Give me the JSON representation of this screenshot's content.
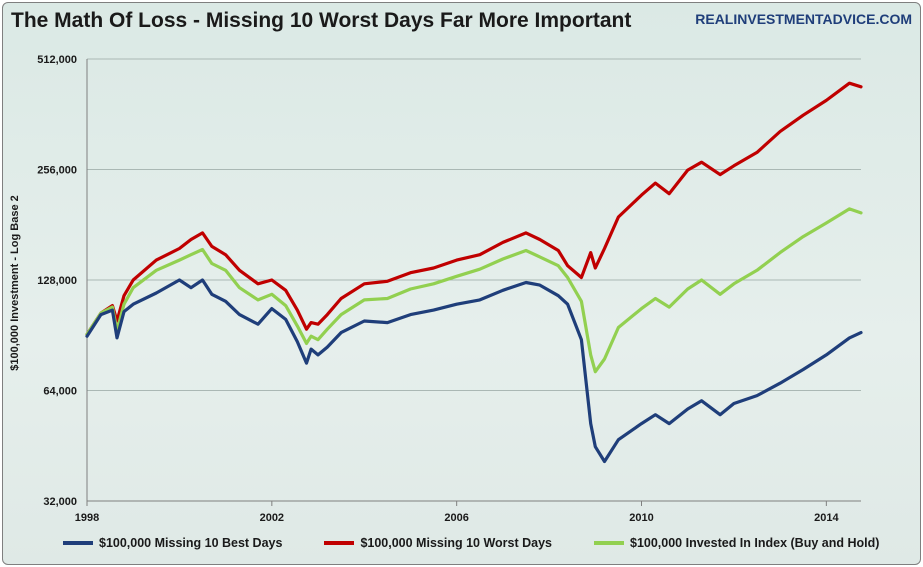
{
  "header": {
    "title": "The Math Of Loss - Missing 10 Worst Days Far More Important",
    "source": "REALINVESTMENTADVICE.COM"
  },
  "chart_data": {
    "type": "line",
    "title": "The Math Of Loss - Missing 10 Worst Days Far More Important",
    "xlabel": "",
    "ylabel": "$100,000 Investment - Log Base 2",
    "y_scale": "log2",
    "ylim": [
      32000,
      512000
    ],
    "xlim": [
      1998.0,
      2014.75
    ],
    "y_ticks": [
      "32,000",
      "64,000",
      "128,000",
      "256,000",
      "512,000"
    ],
    "y_tick_values": [
      32000,
      64000,
      128000,
      256000,
      512000
    ],
    "x_ticks": [
      "1998",
      "2002",
      "2006",
      "2010",
      "2014"
    ],
    "x_tick_values": [
      1998,
      2002,
      2006,
      2010,
      2014
    ],
    "grid": "horizontal",
    "legend_position": "bottom",
    "series": [
      {
        "name": "$100,000 Missing 10 Best Days",
        "color": "#1f3e7a",
        "x": [
          1998.0,
          1998.3,
          1998.55,
          1998.65,
          1998.8,
          1999.0,
          1999.5,
          2000.0,
          2000.25,
          2000.5,
          2000.7,
          2001.0,
          2001.3,
          2001.7,
          2002.0,
          2002.3,
          2002.55,
          2002.75,
          2002.85,
          2003.0,
          2003.2,
          2003.5,
          2004.0,
          2004.5,
          2005.0,
          2005.5,
          2006.0,
          2006.5,
          2007.0,
          2007.5,
          2007.8,
          2008.2,
          2008.4,
          2008.7,
          2008.9,
          2009.0,
          2009.2,
          2009.5,
          2010.0,
          2010.3,
          2010.6,
          2011.0,
          2011.3,
          2011.7,
          2012.0,
          2012.5,
          2013.0,
          2013.5,
          2014.0,
          2014.5,
          2014.75
        ],
        "values": [
          90000,
          103000,
          106000,
          89000,
          105000,
          110000,
          118000,
          128000,
          122000,
          128000,
          117000,
          112000,
          103000,
          97000,
          107000,
          100000,
          87000,
          76000,
          83000,
          80000,
          84000,
          92000,
          99000,
          98000,
          103000,
          106000,
          110000,
          113000,
          120000,
          126000,
          124000,
          116000,
          110000,
          88000,
          52000,
          45000,
          41000,
          47000,
          52000,
          55000,
          52000,
          57000,
          60000,
          55000,
          59000,
          62000,
          67000,
          73000,
          80000,
          89000,
          92000
        ]
      },
      {
        "name": "$100,000 Missing 10 Worst Days",
        "color": "#c00000",
        "x": [
          1998.0,
          1998.3,
          1998.55,
          1998.65,
          1998.8,
          1999.0,
          1999.5,
          2000.0,
          2000.25,
          2000.5,
          2000.7,
          2001.0,
          2001.3,
          2001.7,
          2002.0,
          2002.3,
          2002.55,
          2002.75,
          2002.85,
          2003.0,
          2003.2,
          2003.5,
          2004.0,
          2004.5,
          2005.0,
          2005.5,
          2006.0,
          2006.5,
          2007.0,
          2007.5,
          2007.8,
          2008.2,
          2008.4,
          2008.7,
          2008.9,
          2009.0,
          2009.2,
          2009.5,
          2010.0,
          2010.3,
          2010.6,
          2011.0,
          2011.3,
          2011.7,
          2012.0,
          2012.5,
          2013.0,
          2013.5,
          2014.0,
          2014.5,
          2014.75
        ],
        "values": [
          91000,
          104000,
          109000,
          99000,
          116000,
          128000,
          145000,
          156000,
          165000,
          172000,
          158000,
          150000,
          136000,
          125000,
          128000,
          120000,
          106000,
          94000,
          98000,
          97000,
          103000,
          114000,
          125000,
          127000,
          134000,
          138000,
          145000,
          150000,
          162000,
          172000,
          165000,
          154000,
          140000,
          130000,
          152000,
          138000,
          156000,
          190000,
          218000,
          235000,
          220000,
          255000,
          268000,
          248000,
          262000,
          285000,
          325000,
          360000,
          395000,
          440000,
          430000
        ]
      },
      {
        "name": "$100,000 Invested In Index (Buy and Hold)",
        "color": "#92d050",
        "x": [
          1998.0,
          1998.3,
          1998.55,
          1998.65,
          1998.8,
          1999.0,
          1999.5,
          2000.0,
          2000.25,
          2000.5,
          2000.7,
          2001.0,
          2001.3,
          2001.7,
          2002.0,
          2002.3,
          2002.55,
          2002.75,
          2002.85,
          2003.0,
          2003.2,
          2003.5,
          2004.0,
          2004.5,
          2005.0,
          2005.5,
          2006.0,
          2006.5,
          2007.0,
          2007.5,
          2007.8,
          2008.2,
          2008.4,
          2008.7,
          2008.9,
          2009.0,
          2009.2,
          2009.5,
          2010.0,
          2010.3,
          2010.6,
          2011.0,
          2011.3,
          2011.7,
          2012.0,
          2012.5,
          2013.0,
          2013.5,
          2014.0,
          2014.5,
          2014.75
        ],
        "values": [
          91000,
          104000,
          108000,
          93000,
          110000,
          122000,
          136000,
          145000,
          150000,
          155000,
          142000,
          136000,
          122000,
          113000,
          117000,
          109000,
          96000,
          86000,
          90000,
          88000,
          94000,
          103000,
          113000,
          114000,
          121000,
          125000,
          131000,
          137000,
          146000,
          154000,
          148000,
          140000,
          130000,
          112000,
          80000,
          72000,
          78000,
          95000,
          107000,
          114000,
          108000,
          121000,
          128000,
          117000,
          125000,
          136000,
          152000,
          168000,
          183000,
          200000,
          195000
        ]
      }
    ]
  }
}
